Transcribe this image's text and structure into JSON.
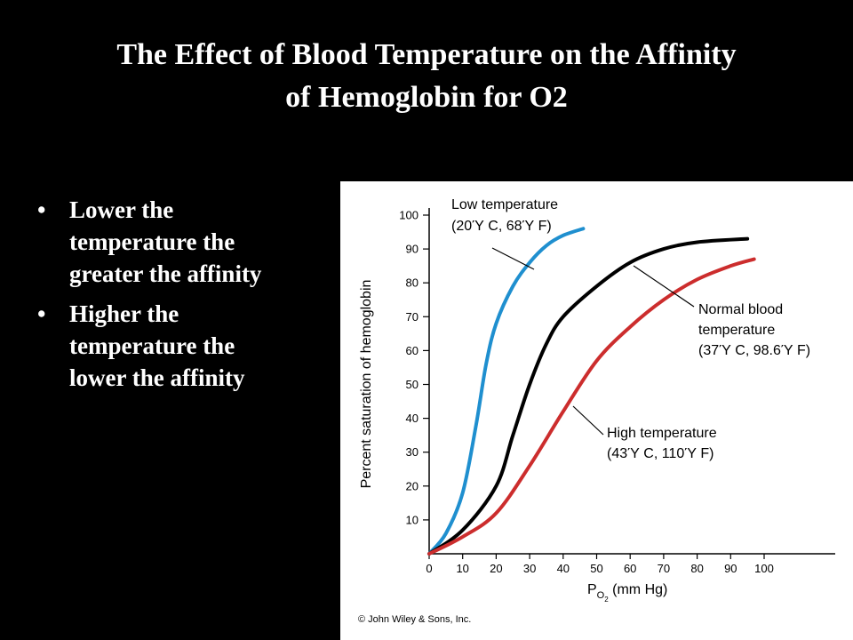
{
  "title_line1": "The Effect of Blood Temperature on the Affinity",
  "title_line2": "of Hemoglobin for O2",
  "bullets": [
    {
      "line1": "Lower the",
      "line2": "temperature the",
      "line3": "greater the affinity"
    },
    {
      "line1": "Higher the",
      "line2": "temperature the",
      "line3": "lower the affinity"
    }
  ],
  "bullet_glyph": "•",
  "chart_data": {
    "type": "line",
    "ylabel": "Percent saturation of hemoglobin",
    "xlabel_main": "P",
    "xlabel_sub1": "O",
    "xlabel_sub2": "2",
    "xlabel_rest": " (mm Hg)",
    "xlim": [
      0,
      120
    ],
    "ylim": [
      0,
      100
    ],
    "x_ticks": [
      "0",
      "10",
      "20",
      "30",
      "40",
      "50",
      "60",
      "70",
      "80",
      "90",
      "100"
    ],
    "y_ticks": [
      "10",
      "20",
      "30",
      "40",
      "50",
      "60",
      "70",
      "80",
      "90",
      "100"
    ],
    "series": [
      {
        "name_line1": "Low temperature",
        "name_line2": "(20Ύ C, 68Ύ F)",
        "color": "#1f8fcf",
        "x": [
          0,
          5,
          10,
          14,
          17,
          20,
          25,
          30,
          35,
          40,
          46
        ],
        "y": [
          0,
          6,
          18,
          38,
          56,
          68,
          79,
          86,
          91,
          94,
          96
        ]
      },
      {
        "name_line1": "Normal blood",
        "name_line2": "temperature",
        "name_line3": "(37Ύ C, 98.6Ύ F)",
        "color": "#000000",
        "x": [
          0,
          10,
          20,
          25,
          30,
          35,
          40,
          50,
          60,
          70,
          80,
          95
        ],
        "y": [
          0,
          7,
          20,
          35,
          50,
          62,
          70,
          79,
          86,
          90,
          92,
          93
        ]
      },
      {
        "name_line1": "High temperature",
        "name_line2": "(43Ύ C, 110Ύ F)",
        "color": "#cc2d2d",
        "x": [
          0,
          10,
          20,
          30,
          40,
          50,
          60,
          70,
          80,
          90,
          97
        ],
        "y": [
          0,
          5,
          12,
          26,
          42,
          57,
          67,
          75,
          81,
          85,
          87
        ]
      }
    ],
    "copyright": "© John Wiley & Sons, Inc."
  }
}
